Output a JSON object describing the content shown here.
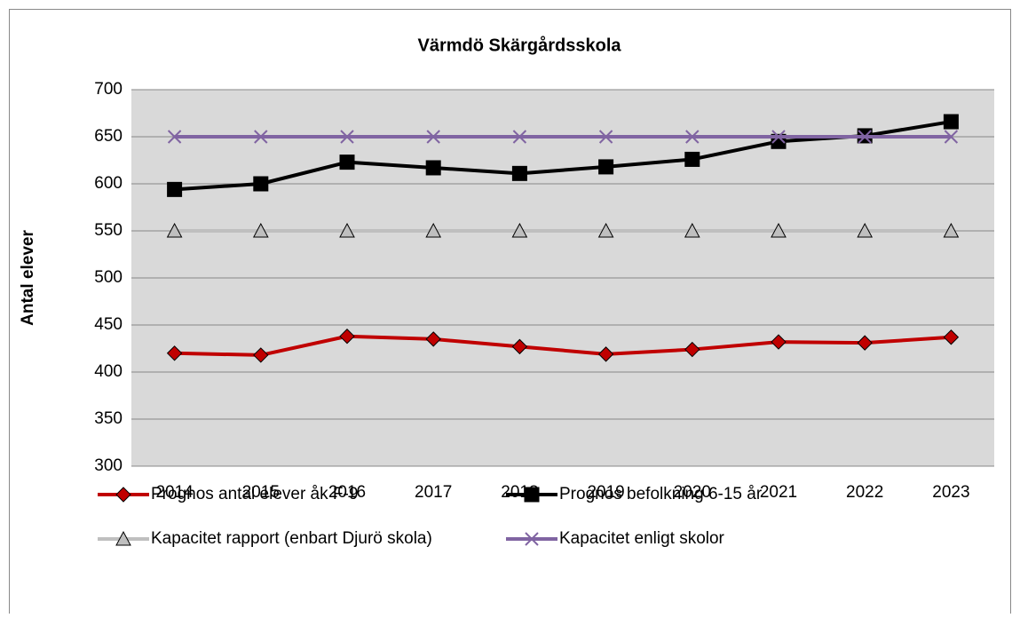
{
  "chart_data": {
    "type": "line",
    "title": "Värmdö Skärgårdsskola",
    "y_label": "Antal elever",
    "categories": [
      "2014",
      "2015",
      "2016",
      "2017",
      "2018",
      "2019",
      "2020",
      "2021",
      "2022",
      "2023"
    ],
    "series": [
      {
        "name": "Prognos antal elever åk F-9",
        "color": "#c00000",
        "marker": "diamond",
        "values": [
          420,
          418,
          438,
          435,
          427,
          419,
          424,
          432,
          431,
          437
        ]
      },
      {
        "name": "Prognos befolkning 6-15 år",
        "color": "#000000",
        "marker": "square",
        "values": [
          594,
          600,
          623,
          617,
          611,
          618,
          626,
          645,
          651,
          666
        ]
      },
      {
        "name": "Kapacitet rapport (enbart Djurö skola)",
        "color": "#bfbfbf",
        "marker": "triangle",
        "values": [
          550,
          550,
          550,
          550,
          550,
          550,
          550,
          550,
          550,
          550
        ]
      },
      {
        "name": "Kapacitet enligt skolor",
        "color": "#8064a2",
        "marker": "x",
        "values": [
          650,
          650,
          650,
          650,
          650,
          650,
          650,
          650,
          650,
          650
        ]
      }
    ],
    "ylim": [
      300,
      700
    ],
    "yticks": [
      300,
      350,
      400,
      450,
      500,
      550,
      600,
      650,
      700
    ],
    "grid": true
  }
}
